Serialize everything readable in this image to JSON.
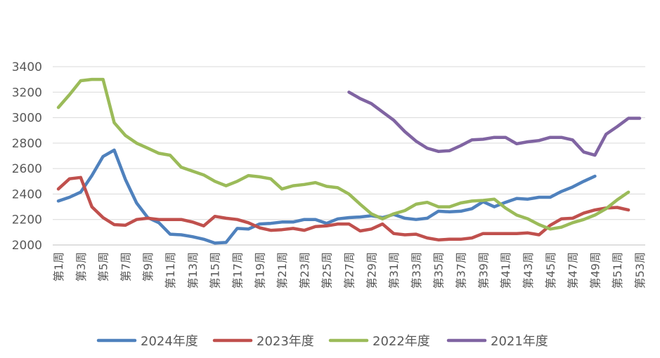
{
  "chart_data": {
    "type": "line",
    "title": "",
    "xlabel": "",
    "ylabel": "",
    "ylim": [
      2000,
      3400
    ],
    "yticks": [
      2000,
      2200,
      2400,
      2600,
      2800,
      3000,
      3200,
      3400
    ],
    "grid": true,
    "legend_position": "bottom",
    "x": [
      "第1周",
      "第2周",
      "第3周",
      "第4周",
      "第5周",
      "第6周",
      "第7周",
      "第8周",
      "第9周",
      "第10周",
      "第11周",
      "第12周",
      "第13周",
      "第14周",
      "第15周",
      "第16周",
      "第17周",
      "第18周",
      "第19周",
      "第20周",
      "第21周",
      "第22周",
      "第23周",
      "第24周",
      "第25周",
      "第26周",
      "第27周",
      "第28周",
      "第29周",
      "第30周",
      "第31周",
      "第32周",
      "第33周",
      "第34周",
      "第35周",
      "第36周",
      "第37周",
      "第38周",
      "第39周",
      "第40周",
      "第41周",
      "第42周",
      "第43周",
      "第44周",
      "第45周",
      "第46周",
      "第47周",
      "第48周",
      "第49周",
      "第50周",
      "第51周",
      "第52周",
      "第53周"
    ],
    "xtick_labels": [
      "第1周",
      "第3周",
      "第5周",
      "第7周",
      "第9周",
      "第11周",
      "第13周",
      "第15周",
      "第17周",
      "第19周",
      "第21周",
      "第23周",
      "第25周",
      "第27周",
      "第29周",
      "第31周",
      "第33周",
      "第35周",
      "第37周",
      "第39周",
      "第41周",
      "第43周",
      "第45周",
      "第47周",
      "第49周",
      "第51周",
      "第53周"
    ],
    "series": [
      {
        "name": "2024年度",
        "color": "#4f81bd",
        "values": [
          2345,
          2375,
          2415,
          2545,
          2695,
          2745,
          2515,
          2330,
          2215,
          2175,
          2085,
          2080,
          2065,
          2045,
          2015,
          2020,
          2130,
          2125,
          2165,
          2170,
          2180,
          2180,
          2200,
          2200,
          2170,
          2205,
          2215,
          2220,
          2230,
          2215,
          2240,
          2210,
          2200,
          2210,
          2265,
          2260,
          2265,
          2285,
          2340,
          2300,
          2335,
          2365,
          2360,
          2375,
          2375,
          2420,
          2455,
          2500,
          2540,
          null,
          null,
          null,
          null
        ]
      },
      {
        "name": "2023年度",
        "color": "#c0504d",
        "values": [
          2440,
          2520,
          2530,
          2300,
          2215,
          2160,
          2155,
          2200,
          2210,
          2200,
          2200,
          2200,
          2180,
          2150,
          2225,
          2210,
          2200,
          2175,
          2135,
          2115,
          2120,
          2130,
          2115,
          2145,
          2150,
          2165,
          2165,
          2110,
          2125,
          2165,
          2090,
          2080,
          2085,
          2055,
          2040,
          2045,
          2045,
          2055,
          2090,
          2090,
          2090,
          2090,
          2095,
          2080,
          2155,
          2205,
          2210,
          2250,
          2275,
          2290,
          2295,
          2275,
          null
        ]
      },
      {
        "name": "2022年度",
        "color": "#9bbb59",
        "values": [
          3080,
          3180,
          3290,
          3300,
          3300,
          2960,
          2860,
          2800,
          2760,
          2720,
          2705,
          2610,
          2580,
          2550,
          2500,
          2465,
          2500,
          2545,
          2535,
          2520,
          2440,
          2465,
          2475,
          2490,
          2460,
          2450,
          2400,
          2320,
          2245,
          2205,
          2245,
          2270,
          2320,
          2335,
          2300,
          2300,
          2330,
          2345,
          2350,
          2360,
          2290,
          2235,
          2205,
          2160,
          2125,
          2140,
          2175,
          2200,
          2235,
          2285,
          2355,
          2415,
          null
        ]
      },
      {
        "name": "2021年度",
        "color": "#8064a2",
        "values": [
          null,
          null,
          null,
          null,
          null,
          null,
          null,
          null,
          null,
          null,
          null,
          null,
          null,
          null,
          null,
          null,
          null,
          null,
          null,
          null,
          null,
          null,
          null,
          null,
          null,
          null,
          3200,
          3150,
          3110,
          3045,
          2980,
          2890,
          2815,
          2760,
          2735,
          2740,
          2780,
          2825,
          2830,
          2845,
          2845,
          2795,
          2810,
          2820,
          2845,
          2845,
          2825,
          2730,
          2705,
          2870,
          2930,
          2995,
          2995
        ]
      }
    ]
  }
}
